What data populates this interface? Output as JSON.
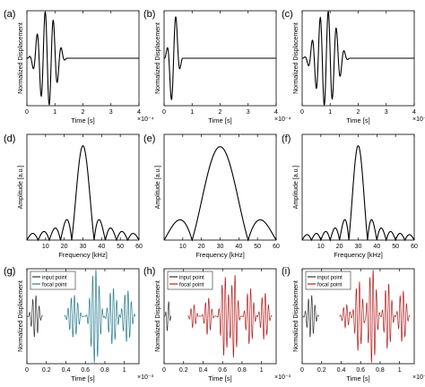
{
  "colors": {
    "black": "#000000",
    "input": "#333333",
    "focal_teal": "#2a7d8c",
    "focal_red": "#b51f1f"
  },
  "chart_data": [
    {
      "panel_label": "(a)",
      "type": "line",
      "xlabel": "Time [s]",
      "ylabel": "Normalized Displacement",
      "x_ticks": [
        "0",
        "1",
        "2",
        "3",
        "4"
      ],
      "x_exponent": "×10⁻⁴",
      "xlim": [
        0,
        4
      ],
      "ylim": [
        -1,
        1
      ],
      "grid": false,
      "series": [
        {
          "color": "#000000",
          "signal": {
            "kind": "tone_burst",
            "start": 0.0,
            "end": 1.45,
            "cycles": 5,
            "amp": 1.0
          },
          "values": [
            [
              0,
              0
            ],
            [
              0.07,
              0.35
            ],
            [
              0.15,
              -0.3
            ],
            [
              0.22,
              -0.35
            ],
            [
              0.3,
              0.8
            ],
            [
              0.37,
              0.65
            ],
            [
              0.45,
              -0.85
            ],
            [
              0.52,
              -0.75
            ],
            [
              0.6,
              1.0
            ],
            [
              0.67,
              0.98
            ],
            [
              0.75,
              -1.0
            ],
            [
              0.82,
              -0.9
            ],
            [
              0.9,
              0.85
            ],
            [
              0.97,
              0.7
            ],
            [
              1.05,
              -0.65
            ],
            [
              1.12,
              -0.5
            ],
            [
              1.2,
              0.35
            ],
            [
              1.27,
              0.2
            ],
            [
              1.35,
              -0.1
            ],
            [
              1.45,
              0
            ],
            [
              4.0,
              0
            ]
          ]
        }
      ]
    },
    {
      "panel_label": "(b)",
      "type": "line",
      "xlabel": "Time [s]",
      "ylabel": "Normalized Displacement",
      "x_ticks": [
        "0",
        "1",
        "2",
        "3",
        "4"
      ],
      "x_exponent": "×10⁻⁴",
      "xlim": [
        0,
        4
      ],
      "ylim": [
        -1,
        1
      ],
      "grid": false,
      "series": [
        {
          "color": "#000000",
          "signal": {
            "kind": "tone_burst",
            "start": 0.0,
            "end": 0.68,
            "cycles": 2,
            "amp": 1.0
          },
          "values": [
            [
              0,
              0
            ],
            [
              0.08,
              0.2
            ],
            [
              0.17,
              -0.35
            ],
            [
              0.25,
              -0.5
            ],
            [
              0.34,
              0.95
            ],
            [
              0.42,
              0.9
            ],
            [
              0.51,
              -0.45
            ],
            [
              0.6,
              -0.3
            ],
            [
              0.68,
              0
            ],
            [
              4.0,
              0
            ]
          ]
        }
      ]
    },
    {
      "panel_label": "(c)",
      "type": "line",
      "xlabel": "Time [s]",
      "ylabel": "Normalized Displacement",
      "x_ticks": [
        "0",
        "1",
        "2",
        "3",
        "4"
      ],
      "x_exponent": "×10⁻⁴",
      "xlim": [
        0,
        4
      ],
      "ylim": [
        -1,
        1
      ],
      "grid": false,
      "series": [
        {
          "color": "#000000",
          "signal": {
            "kind": "tone_burst",
            "start": 0.0,
            "end": 1.72,
            "cycles": 6,
            "amp": 1.0
          },
          "values": [
            [
              0,
              0
            ],
            [
              0.2,
              -0.15
            ],
            [
              0.35,
              0.45
            ],
            [
              0.5,
              -0.55
            ],
            [
              0.65,
              0.75
            ],
            [
              0.8,
              -0.85
            ],
            [
              0.95,
              1.0
            ],
            [
              1.1,
              -1.0
            ],
            [
              1.25,
              0.85
            ],
            [
              1.4,
              -0.7
            ],
            [
              1.55,
              0.4
            ],
            [
              1.72,
              0
            ],
            [
              4.0,
              0
            ]
          ]
        }
      ]
    },
    {
      "panel_label": "(d)",
      "type": "line",
      "xlabel": "Frequency [kHz]",
      "ylabel": "Amplitude [a.u.]",
      "x_ticks": [
        "10",
        "20",
        "30",
        "40",
        "50",
        "60"
      ],
      "xlim": [
        0,
        60
      ],
      "ylim": [
        0,
        1.2
      ],
      "grid": false,
      "series": [
        {
          "color": "#000000",
          "signal": {
            "kind": "sinc_abs",
            "f0": 30,
            "null_spacing": 6,
            "amp": 1.07
          },
          "values": [
            [
              0,
              0.02
            ],
            [
              18,
              0.05
            ],
            [
              24,
              0.03
            ],
            [
              30,
              1.07
            ],
            [
              36,
              0.03
            ],
            [
              42,
              0.05
            ],
            [
              60,
              0.02
            ]
          ]
        }
      ]
    },
    {
      "panel_label": "(e)",
      "type": "line",
      "xlabel": "Frequency [kHz]",
      "ylabel": "Amplitude [a.u.]",
      "x_ticks": [
        "10",
        "20",
        "30",
        "40",
        "50",
        "60"
      ],
      "xlim": [
        0,
        60
      ],
      "ylim": [
        0,
        0.6
      ],
      "grid": false,
      "series": [
        {
          "color": "#000000",
          "signal": {
            "kind": "sinc_abs",
            "f0": 30,
            "null_spacing": 15,
            "amp": 0.53
          },
          "values": [
            [
              0,
              0.01
            ],
            [
              5,
              0.05
            ],
            [
              15,
              0.01
            ],
            [
              30,
              0.53
            ],
            [
              45,
              0.01
            ],
            [
              55,
              0.05
            ],
            [
              60,
              0.02
            ]
          ]
        }
      ]
    },
    {
      "panel_label": "(f)",
      "type": "line",
      "xlabel": "Frequency [kHz]",
      "ylabel": "Amplitude [a.u.]",
      "x_ticks": [
        "10",
        "20",
        "30",
        "40",
        "50",
        "60"
      ],
      "xlim": [
        0,
        60
      ],
      "ylim": [
        0,
        1.2
      ],
      "grid": false,
      "series": [
        {
          "color": "#000000",
          "signal": {
            "kind": "sinc_abs",
            "f0": 30,
            "null_spacing": 5,
            "amp": 1.07
          },
          "values": [
            [
              0,
              0.02
            ],
            [
              20,
              0.06
            ],
            [
              25,
              0.03
            ],
            [
              30,
              1.07
            ],
            [
              35,
              0.03
            ],
            [
              40,
              0.06
            ],
            [
              60,
              0.02
            ]
          ]
        }
      ]
    },
    {
      "panel_label": "(g)",
      "type": "line",
      "xlabel": "Time [s]",
      "ylabel": "Normalized Displacement",
      "x_ticks": [
        "0",
        "0.2",
        "0.4",
        "0.6",
        "0.8",
        "1"
      ],
      "x_exponent": "×10⁻³",
      "xlim": [
        0,
        1.15
      ],
      "ylim": [
        -1,
        1
      ],
      "grid": false,
      "legend_position": "top-left",
      "series": [
        {
          "name": "input point",
          "color": "#333333",
          "signal": {
            "kind": "bursts",
            "carrier_khz": 30,
            "bursts": [
              {
                "center": 0.085,
                "half_width": 0.08,
                "amp": 0.45
              }
            ]
          },
          "values": [
            [
              0.005,
              0
            ],
            [
              0.085,
              0.45
            ],
            [
              0.165,
              0
            ]
          ]
        },
        {
          "name": "focal point",
          "color": "#2a7d8c",
          "signal": {
            "kind": "bursts",
            "carrier_khz": 30,
            "bursts": [
              {
                "center": 0.48,
                "half_width": 0.1,
                "amp": 0.45
              },
              {
                "center": 0.7,
                "half_width": 0.1,
                "amp": 1.0
              },
              {
                "center": 0.88,
                "half_width": 0.09,
                "amp": 0.6
              },
              {
                "center": 1.03,
                "half_width": 0.09,
                "amp": 0.55
              }
            ]
          },
          "values": [
            [
              0.38,
              0
            ],
            [
              0.48,
              0.45
            ],
            [
              0.7,
              1.0
            ],
            [
              0.88,
              0.6
            ],
            [
              1.03,
              0.55
            ],
            [
              1.12,
              0
            ]
          ]
        }
      ]
    },
    {
      "panel_label": "(h)",
      "type": "line",
      "xlabel": "Time [s]",
      "ylabel": "Normalized Displacement",
      "x_ticks": [
        "0",
        "0.2",
        "0.4",
        "0.6",
        "0.8",
        "1"
      ],
      "x_exponent": "×10⁻³",
      "xlim": [
        0,
        1.15
      ],
      "ylim": [
        -1,
        1
      ],
      "grid": false,
      "legend_position": "top-left",
      "series": [
        {
          "name": "input point",
          "color": "#333333",
          "signal": {
            "kind": "bursts",
            "carrier_khz": 30,
            "bursts": [
              {
                "center": 0.04,
                "half_width": 0.035,
                "amp": 0.35
              }
            ]
          },
          "values": [
            [
              0.005,
              0
            ],
            [
              0.04,
              0.35
            ],
            [
              0.075,
              0
            ]
          ]
        },
        {
          "name": "focal point",
          "color": "#b51f1f",
          "signal": {
            "kind": "bursts",
            "carrier_khz": 30,
            "bursts": [
              {
                "center": 0.3,
                "half_width": 0.06,
                "amp": 0.25
              },
              {
                "center": 0.45,
                "half_width": 0.07,
                "amp": 0.4
              },
              {
                "center": 0.62,
                "half_width": 0.08,
                "amp": 0.85
              },
              {
                "center": 0.72,
                "half_width": 0.07,
                "amp": 0.9
              },
              {
                "center": 0.88,
                "half_width": 0.08,
                "amp": 0.6
              },
              {
                "center": 1.03,
                "half_width": 0.08,
                "amp": 0.5
              }
            ]
          },
          "values": [
            [
              0.24,
              0
            ],
            [
              0.3,
              0.25
            ],
            [
              0.45,
              0.4
            ],
            [
              0.62,
              0.85
            ],
            [
              0.72,
              0.9
            ],
            [
              0.88,
              0.6
            ],
            [
              1.03,
              0.5
            ],
            [
              1.11,
              0
            ]
          ]
        }
      ]
    },
    {
      "panel_label": "(i)",
      "type": "line",
      "xlabel": "Time [s]",
      "ylabel": "Normalized Displacement",
      "x_ticks": [
        "0",
        "0.2",
        "0.4",
        "0.6",
        "0.8",
        "1"
      ],
      "x_exponent": "×10⁻³",
      "xlim": [
        0,
        1.15
      ],
      "ylim": [
        -1,
        1
      ],
      "grid": false,
      "legend_position": "top-left",
      "series": [
        {
          "name": "input point",
          "color": "#333333",
          "signal": {
            "kind": "bursts",
            "carrier_khz": 30,
            "bursts": [
              {
                "center": 0.09,
                "half_width": 0.085,
                "amp": 0.45
              }
            ]
          },
          "values": [
            [
              0.005,
              0
            ],
            [
              0.09,
              0.45
            ],
            [
              0.175,
              0
            ]
          ]
        },
        {
          "name": "focal point",
          "color": "#b51f1f",
          "signal": {
            "kind": "bursts",
            "carrier_khz": 30,
            "bursts": [
              {
                "center": 0.45,
                "half_width": 0.07,
                "amp": 0.25
              },
              {
                "center": 0.58,
                "half_width": 0.08,
                "amp": 0.75
              },
              {
                "center": 0.72,
                "half_width": 0.09,
                "amp": 1.0
              },
              {
                "center": 0.88,
                "half_width": 0.08,
                "amp": 0.7
              },
              {
                "center": 1.03,
                "half_width": 0.08,
                "amp": 0.55
              }
            ]
          },
          "values": [
            [
              0.38,
              0
            ],
            [
              0.45,
              0.25
            ],
            [
              0.58,
              0.75
            ],
            [
              0.72,
              1.0
            ],
            [
              0.88,
              0.7
            ],
            [
              1.03,
              0.55
            ],
            [
              1.11,
              0
            ]
          ]
        }
      ]
    }
  ]
}
